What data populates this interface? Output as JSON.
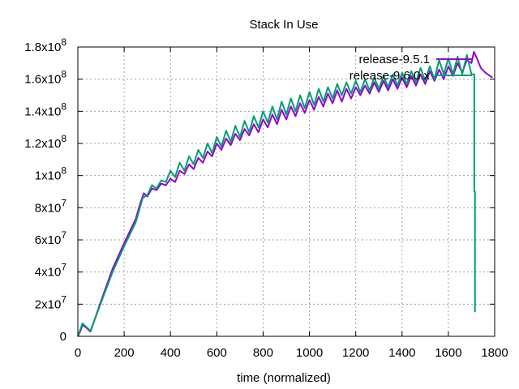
{
  "chart_data": {
    "type": "line",
    "title": "Stack In Use",
    "xlabel": "time (normalized)",
    "ylabel": "",
    "xlim": [
      0,
      1800
    ],
    "ylim": [
      0,
      180000000
    ],
    "grid": true,
    "legend_position": "top-right",
    "x_ticks": [
      {
        "value": 0,
        "label": "0"
      },
      {
        "value": 200,
        "label": "200"
      },
      {
        "value": 400,
        "label": "400"
      },
      {
        "value": 600,
        "label": "600"
      },
      {
        "value": 800,
        "label": "800"
      },
      {
        "value": 1000,
        "label": "1000"
      },
      {
        "value": 1200,
        "label": "1200"
      },
      {
        "value": 1400,
        "label": "1400"
      },
      {
        "value": 1600,
        "label": "1600"
      },
      {
        "value": 1800,
        "label": "1800"
      }
    ],
    "y_ticks": [
      {
        "value": 0,
        "mantissa": "0",
        "exp": ""
      },
      {
        "value": 20000000,
        "mantissa": "2x10",
        "exp": "7"
      },
      {
        "value": 40000000,
        "mantissa": "4x10",
        "exp": "7"
      },
      {
        "value": 60000000,
        "mantissa": "6x10",
        "exp": "7"
      },
      {
        "value": 80000000,
        "mantissa": "8x10",
        "exp": "7"
      },
      {
        "value": 100000000,
        "mantissa": "1x10",
        "exp": "8"
      },
      {
        "value": 120000000,
        "mantissa": "1.2x10",
        "exp": "8"
      },
      {
        "value": 140000000,
        "mantissa": "1.4x10",
        "exp": "8"
      },
      {
        "value": 160000000,
        "mantissa": "1.6x10",
        "exp": "8"
      },
      {
        "value": 180000000,
        "mantissa": "1.8x10",
        "exp": "8"
      }
    ],
    "series": [
      {
        "name": "release-9.5.1",
        "color": "#9400d3",
        "points": [
          [
            0,
            0
          ],
          [
            10,
            3000000
          ],
          [
            20,
            7000000
          ],
          [
            35,
            5500000
          ],
          [
            55,
            3000000
          ],
          [
            100,
            22000000
          ],
          [
            150,
            42000000
          ],
          [
            200,
            58000000
          ],
          [
            250,
            73000000
          ],
          [
            270,
            83000000
          ],
          [
            285,
            89000000
          ],
          [
            300,
            87000000
          ],
          [
            320,
            92000000
          ],
          [
            340,
            91000000
          ],
          [
            360,
            95000000
          ],
          [
            380,
            94000000
          ],
          [
            400,
            98000000
          ],
          [
            420,
            96000000
          ],
          [
            440,
            103000000
          ],
          [
            460,
            101000000
          ],
          [
            480,
            107000000
          ],
          [
            500,
            104000000
          ],
          [
            520,
            111000000
          ],
          [
            540,
            108000000
          ],
          [
            560,
            115000000
          ],
          [
            580,
            112000000
          ],
          [
            600,
            120000000
          ],
          [
            620,
            116000000
          ],
          [
            640,
            123000000
          ],
          [
            660,
            119000000
          ],
          [
            680,
            126000000
          ],
          [
            700,
            122000000
          ],
          [
            720,
            129000000
          ],
          [
            740,
            125000000
          ],
          [
            760,
            132000000
          ],
          [
            780,
            127000000
          ],
          [
            800,
            135000000
          ],
          [
            820,
            130000000
          ],
          [
            840,
            138000000
          ],
          [
            860,
            132000000
          ],
          [
            880,
            141000000
          ],
          [
            900,
            135000000
          ],
          [
            920,
            143000000
          ],
          [
            940,
            137000000
          ],
          [
            960,
            145000000
          ],
          [
            980,
            139000000
          ],
          [
            1000,
            147000000
          ],
          [
            1020,
            141000000
          ],
          [
            1040,
            149000000
          ],
          [
            1060,
            143000000
          ],
          [
            1080,
            151000000
          ],
          [
            1100,
            145000000
          ],
          [
            1120,
            153000000
          ],
          [
            1140,
            146000000
          ],
          [
            1160,
            154000000
          ],
          [
            1180,
            148000000
          ],
          [
            1200,
            155000000
          ],
          [
            1220,
            150000000
          ],
          [
            1240,
            156000000
          ],
          [
            1260,
            151000000
          ],
          [
            1280,
            158000000
          ],
          [
            1300,
            152000000
          ],
          [
            1320,
            159000000
          ],
          [
            1340,
            153000000
          ],
          [
            1360,
            160000000
          ],
          [
            1380,
            154000000
          ],
          [
            1400,
            161000000
          ],
          [
            1420,
            155000000
          ],
          [
            1440,
            162000000
          ],
          [
            1460,
            156000000
          ],
          [
            1480,
            163000000
          ],
          [
            1500,
            157000000
          ],
          [
            1520,
            165000000
          ],
          [
            1540,
            159000000
          ],
          [
            1560,
            166000000
          ],
          [
            1580,
            160000000
          ],
          [
            1600,
            168000000
          ],
          [
            1620,
            162000000
          ],
          [
            1640,
            170000000
          ],
          [
            1660,
            164000000
          ],
          [
            1680,
            172000000
          ],
          [
            1700,
            170000000
          ],
          [
            1710,
            177000000
          ],
          [
            1720,
            174000000
          ],
          [
            1740,
            167000000
          ],
          [
            1760,
            164000000
          ],
          [
            1780,
            162000000
          ],
          [
            1790,
            161000000
          ]
        ]
      },
      {
        "name": "release-9.6.0.x",
        "color": "#009e73",
        "points": [
          [
            0,
            0
          ],
          [
            10,
            4000000
          ],
          [
            20,
            8000000
          ],
          [
            35,
            6000000
          ],
          [
            55,
            3500000
          ],
          [
            100,
            21000000
          ],
          [
            150,
            40000000
          ],
          [
            200,
            56000000
          ],
          [
            250,
            71000000
          ],
          [
            280,
            86000000
          ],
          [
            300,
            88000000
          ],
          [
            320,
            94000000
          ],
          [
            340,
            92000000
          ],
          [
            360,
            97000000
          ],
          [
            380,
            96000000
          ],
          [
            400,
            103000000
          ],
          [
            420,
            99000000
          ],
          [
            440,
            108000000
          ],
          [
            460,
            103000000
          ],
          [
            480,
            112000000
          ],
          [
            500,
            107000000
          ],
          [
            520,
            116000000
          ],
          [
            540,
            111000000
          ],
          [
            560,
            120000000
          ],
          [
            580,
            114000000
          ],
          [
            600,
            124000000
          ],
          [
            620,
            118000000
          ],
          [
            640,
            128000000
          ],
          [
            660,
            121000000
          ],
          [
            680,
            131000000
          ],
          [
            700,
            124000000
          ],
          [
            720,
            134000000
          ],
          [
            740,
            127000000
          ],
          [
            760,
            137000000
          ],
          [
            780,
            130000000
          ],
          [
            800,
            140000000
          ],
          [
            820,
            133000000
          ],
          [
            840,
            143000000
          ],
          [
            860,
            135000000
          ],
          [
            880,
            146000000
          ],
          [
            900,
            138000000
          ],
          [
            920,
            148000000
          ],
          [
            940,
            140000000
          ],
          [
            960,
            150000000
          ],
          [
            980,
            142000000
          ],
          [
            1000,
            152000000
          ],
          [
            1020,
            144000000
          ],
          [
            1040,
            154000000
          ],
          [
            1060,
            146000000
          ],
          [
            1080,
            155000000
          ],
          [
            1100,
            148000000
          ],
          [
            1120,
            157000000
          ],
          [
            1140,
            150000000
          ],
          [
            1160,
            158000000
          ],
          [
            1180,
            151000000
          ],
          [
            1200,
            159000000
          ],
          [
            1220,
            152000000
          ],
          [
            1240,
            160000000
          ],
          [
            1260,
            153000000
          ],
          [
            1280,
            161000000
          ],
          [
            1300,
            154000000
          ],
          [
            1320,
            162000000
          ],
          [
            1340,
            155000000
          ],
          [
            1360,
            163000000
          ],
          [
            1380,
            156000000
          ],
          [
            1400,
            164000000
          ],
          [
            1420,
            157000000
          ],
          [
            1440,
            165000000
          ],
          [
            1460,
            158000000
          ],
          [
            1480,
            167000000
          ],
          [
            1500,
            159000000
          ],
          [
            1520,
            168000000
          ],
          [
            1540,
            160000000
          ],
          [
            1560,
            172000000
          ],
          [
            1580,
            163000000
          ],
          [
            1600,
            173000000
          ],
          [
            1620,
            163000000
          ],
          [
            1640,
            174000000
          ],
          [
            1660,
            163000000
          ],
          [
            1680,
            175000000
          ],
          [
            1700,
            163000000
          ],
          [
            1712,
            163000000
          ],
          [
            1712,
            90000000
          ],
          [
            1715,
            90000000
          ],
          [
            1715,
            15000000
          ]
        ]
      }
    ]
  }
}
